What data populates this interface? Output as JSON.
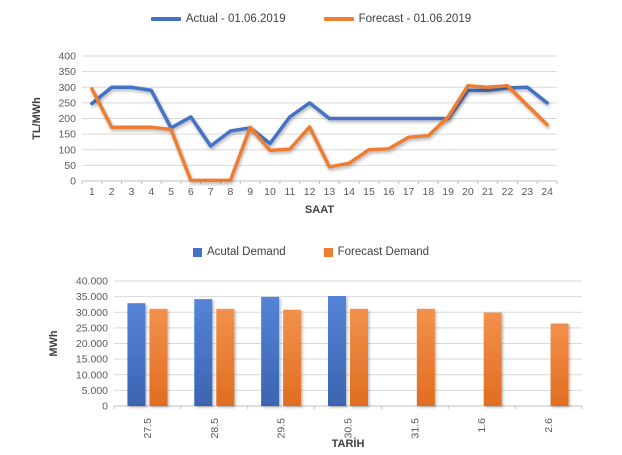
{
  "colors": {
    "actual": "#4472C4",
    "forecast": "#ED7D31",
    "grid": "#D9D9D9",
    "axis_line": "#BFBFBF",
    "tick_text": "#595959",
    "title_text": "#3f3f3f",
    "background": "#ffffff"
  },
  "chart_data": [
    {
      "type": "line",
      "title": "",
      "xlabel": "SAAT",
      "ylabel": "TL/MWh",
      "ylim": [
        0,
        400
      ],
      "ytick_labels": [
        "0",
        "50",
        "100",
        "150",
        "200",
        "250",
        "300",
        "350",
        "400"
      ],
      "grid": true,
      "legend_position": "top",
      "categories": [
        "1",
        "2",
        "3",
        "4",
        "5",
        "6",
        "7",
        "8",
        "9",
        "10",
        "11",
        "12",
        "13",
        "14",
        "15",
        "16",
        "17",
        "18",
        "19",
        "20",
        "21",
        "22",
        "23",
        "24"
      ],
      "series": [
        {
          "name": "Actual - 01.06.2019",
          "color": "#4472C4",
          "values": [
            248,
            300,
            300,
            290,
            170,
            205,
            112,
            160,
            170,
            120,
            205,
            250,
            200,
            200,
            200,
            200,
            200,
            200,
            200,
            290,
            290,
            298,
            300,
            250
          ]
        },
        {
          "name": "Forecast - 01.06.2019",
          "color": "#ED7D31",
          "values": [
            295,
            172,
            172,
            172,
            165,
            2,
            2,
            2,
            172,
            98,
            102,
            173,
            45,
            57,
            100,
            103,
            140,
            145,
            205,
            305,
            300,
            305,
            242,
            180
          ]
        }
      ]
    },
    {
      "type": "bar",
      "title": "",
      "xlabel": "TARİH",
      "ylabel": "MWh",
      "ylim": [
        0,
        40000
      ],
      "ytick_labels": [
        "0",
        "5.000",
        "10.000",
        "15.000",
        "20.000",
        "25.000",
        "30.000",
        "35.000",
        "40.000"
      ],
      "grid": true,
      "legend_position": "top",
      "categories": [
        "27.5",
        "28.5",
        "29.5",
        "30.5",
        "31.5",
        "1.6",
        "2.6"
      ],
      "series": [
        {
          "name": "Acutal Demand",
          "color": "#4472C4",
          "values": [
            32900,
            34200,
            34900,
            35200,
            null,
            null,
            null
          ]
        },
        {
          "name": "Forecast Demand",
          "color": "#ED7D31",
          "values": [
            31100,
            31100,
            30800,
            31100,
            31100,
            29900,
            26400
          ]
        }
      ]
    }
  ]
}
